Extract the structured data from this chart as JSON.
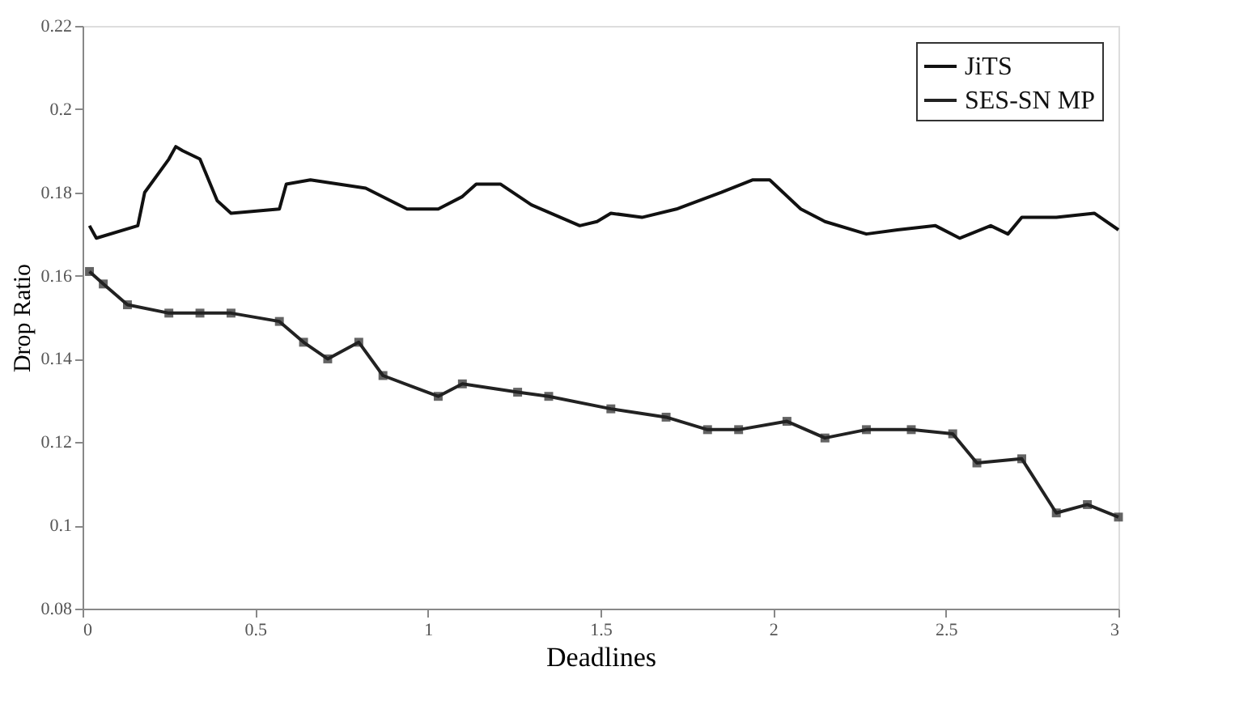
{
  "chart_data": {
    "type": "line",
    "xlabel": "Deadlines",
    "ylabel": "Drop Ratio",
    "xlim": [
      0,
      3
    ],
    "xticks": [
      0,
      0.5,
      1,
      1.5,
      2,
      2.5,
      3
    ],
    "ylim": [
      0.08,
      0.22
    ],
    "yticks": [
      0.08,
      0.1,
      0.12,
      0.14,
      0.16,
      0.18,
      0.2,
      0.22
    ],
    "grid": false,
    "legend": "top right",
    "line_style": "solid",
    "series": [
      {
        "name": "JiTS",
        "color": "#111111",
        "marker": "none",
        "x": [
          0.02,
          0.04,
          0.16,
          0.18,
          0.25,
          0.27,
          0.29,
          0.34,
          0.39,
          0.43,
          0.57,
          0.59,
          0.66,
          0.82,
          0.94,
          1.03,
          1.1,
          1.14,
          1.21,
          1.3,
          1.44,
          1.49,
          1.53,
          1.62,
          1.72,
          1.85,
          1.94,
          1.99,
          2.08,
          2.15,
          2.27,
          2.36,
          2.47,
          2.54,
          2.63,
          2.68,
          2.72,
          2.82,
          2.93,
          3.0
        ],
        "values": [
          0.172,
          0.169,
          0.172,
          0.18,
          0.188,
          0.191,
          0.19,
          0.188,
          0.178,
          0.175,
          0.176,
          0.182,
          0.183,
          0.181,
          0.176,
          0.176,
          0.179,
          0.182,
          0.182,
          0.177,
          0.172,
          0.173,
          0.175,
          0.174,
          0.176,
          0.18,
          0.183,
          0.183,
          0.176,
          0.173,
          0.17,
          0.171,
          0.172,
          0.169,
          0.172,
          0.17,
          0.174,
          0.174,
          0.175,
          0.171
        ]
      },
      {
        "name": "SES-SN MP",
        "color": "#222222",
        "marker": "square",
        "x": [
          0.02,
          0.06,
          0.13,
          0.25,
          0.34,
          0.43,
          0.57,
          0.64,
          0.71,
          0.8,
          0.87,
          1.03,
          1.1,
          1.26,
          1.35,
          1.53,
          1.69,
          1.81,
          1.9,
          2.04,
          2.15,
          2.27,
          2.4,
          2.52,
          2.59,
          2.72,
          2.82,
          2.91,
          3.0
        ],
        "values": [
          0.161,
          0.158,
          0.153,
          0.151,
          0.151,
          0.151,
          0.149,
          0.144,
          0.14,
          0.144,
          0.136,
          0.131,
          0.134,
          0.132,
          0.131,
          0.128,
          0.126,
          0.123,
          0.123,
          0.125,
          0.121,
          0.123,
          0.123,
          0.122,
          0.115,
          0.116,
          0.103,
          0.105,
          0.102
        ]
      }
    ]
  }
}
